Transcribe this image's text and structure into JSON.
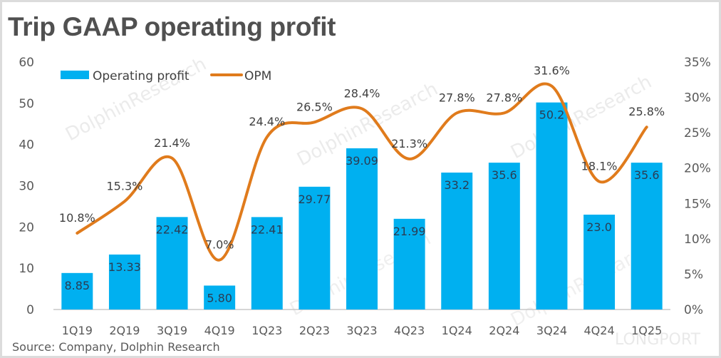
{
  "header": {
    "title": "Trip GAAP operating profit"
  },
  "footer": {
    "source": "Source: Company, Dolphin Research",
    "watermark_brand": "LONGPORT",
    "watermark_text": "DolphinResearch"
  },
  "colors": {
    "bar": "#00b0f0",
    "line": "#e07b1c",
    "axis": "#bfbfbf",
    "text": "#595959"
  },
  "chart_data": {
    "type": "bar",
    "title": "Trip GAAP operating profit",
    "categories": [
      "1Q19",
      "2Q19",
      "3Q19",
      "4Q19",
      "1Q23",
      "2Q23",
      "3Q23",
      "4Q23",
      "1Q24",
      "2Q24",
      "3Q24",
      "4Q24",
      "1Q25"
    ],
    "series": [
      {
        "name": "Operating profit",
        "type": "bar",
        "axis": "left",
        "values": [
          8.85,
          13.33,
          22.42,
          5.8,
          22.41,
          29.77,
          39.09,
          21.99,
          33.2,
          35.6,
          50.2,
          23.0,
          35.6
        ],
        "labels": [
          "8.85",
          "13.33",
          "22.42",
          "5.80",
          "22.41",
          "29.77",
          "39.09",
          "21.99",
          "33.2",
          "35.6",
          "50.2",
          "23.0",
          "35.6"
        ]
      },
      {
        "name": "OPM",
        "type": "line",
        "axis": "right",
        "smooth": true,
        "values": [
          10.8,
          15.3,
          21.4,
          7.0,
          24.4,
          26.5,
          28.4,
          21.3,
          27.8,
          27.8,
          31.6,
          18.1,
          25.8
        ],
        "labels": [
          "10.8%",
          "15.3%",
          "21.4%",
          "7.0%",
          "24.4%",
          "26.5%",
          "28.4%",
          "21.3%",
          "27.8%",
          "27.8%",
          "31.6%",
          "18.1%",
          "25.8%"
        ]
      }
    ],
    "left_axis": {
      "ylim": [
        0,
        60
      ],
      "ticks": [
        0,
        10,
        20,
        30,
        40,
        50,
        60
      ],
      "tick_labels": [
        "0",
        "10",
        "20",
        "30",
        "40",
        "50",
        "60"
      ]
    },
    "right_axis": {
      "ylim": [
        0,
        35
      ],
      "ticks": [
        0,
        5,
        10,
        15,
        20,
        25,
        30,
        35
      ],
      "tick_labels": [
        "0%",
        "5%",
        "10%",
        "15%",
        "20%",
        "25%",
        "30%",
        "35%"
      ]
    },
    "xlabel": "",
    "ylabel": "",
    "grid": false,
    "legend": {
      "position": "top-left",
      "entries": [
        "Operating profit",
        "OPM"
      ]
    }
  }
}
